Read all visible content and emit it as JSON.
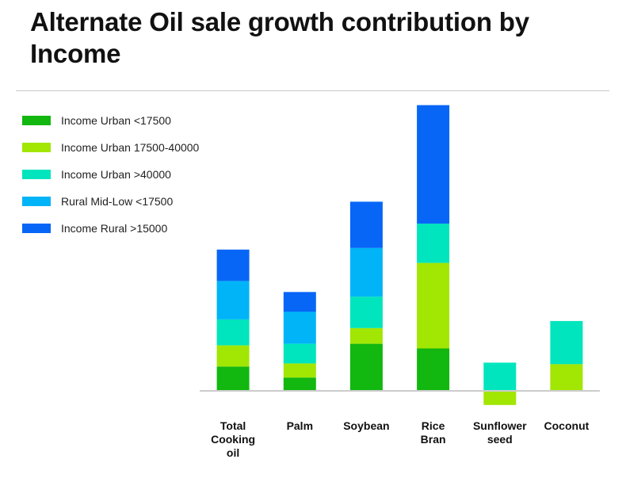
{
  "chart_data": {
    "type": "bar",
    "stacked": true,
    "title": "Alternate Oil sale growth contribution by Income",
    "categories": [
      [
        "Total",
        "Cooking",
        "oil"
      ],
      [
        "Palm"
      ],
      [
        "Soybean"
      ],
      [
        "Rice",
        "Bran"
      ],
      [
        "Sunflower",
        "seed"
      ],
      [
        "Coconut"
      ]
    ],
    "series": [
      {
        "name": "Income Urban <17500",
        "color": "#12b70f",
        "values": [
          3.1,
          1.7,
          6.0,
          5.4,
          0,
          0
        ]
      },
      {
        "name": "Income Urban 17500-40000",
        "color": "#a2e603",
        "values": [
          2.7,
          1.8,
          2.0,
          10.9,
          -1.8,
          3.4
        ]
      },
      {
        "name": "Income Urban >40000",
        "color": "#00e5bd",
        "values": [
          3.3,
          2.5,
          4.0,
          5.0,
          3.6,
          5.5
        ]
      },
      {
        "name": "Rural Mid-Low <17500",
        "color": "#00b4f7",
        "values": [
          4.9,
          4.1,
          6.2,
          0,
          0,
          0
        ]
      },
      {
        "name": "Income Rural >15000",
        "color": "#0866f6",
        "values": [
          4.0,
          2.5,
          5.9,
          15.1,
          0,
          0
        ]
      }
    ],
    "ylim": [
      -2,
      37
    ],
    "grid": false,
    "legend_position": "top-left",
    "xlabel": "",
    "ylabel": ""
  }
}
